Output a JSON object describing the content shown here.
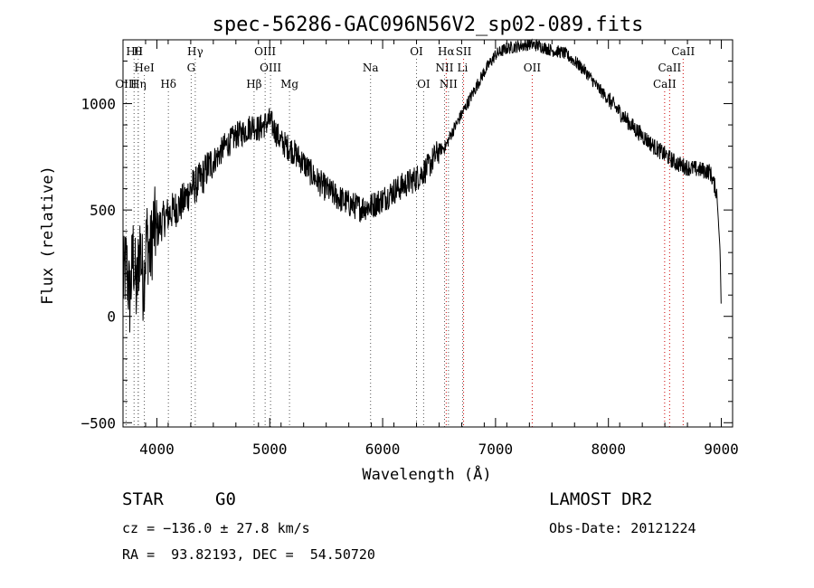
{
  "chart_data": {
    "type": "line",
    "title": "spec-56286-GAC096N56V2_sp02-089.fits",
    "xlabel": "Wavelength (Å)",
    "ylabel": "Flux (relative)",
    "xlim": [
      3700,
      9100
    ],
    "ylim": [
      -520,
      1300
    ],
    "xticks": [
      4000,
      5000,
      6000,
      7000,
      8000,
      9000
    ],
    "yticks": [
      -500,
      0,
      500,
      1000
    ],
    "grid": false,
    "series": [
      {
        "x": [
          3700,
          3730,
          3760,
          3790,
          3820,
          3850,
          3880,
          3910,
          3940,
          3970,
          4000,
          4050,
          4100,
          4150,
          4200,
          4250,
          4300,
          4350,
          4400,
          4450,
          4500,
          4550,
          4600,
          4650,
          4700,
          4750,
          4800,
          4850,
          4900,
          4950,
          5000,
          5050,
          5100,
          5150,
          5200,
          5300,
          5400,
          5500,
          5600,
          5700,
          5800,
          5900,
          6000,
          6100,
          6200,
          6300,
          6400,
          6500,
          6560,
          6600,
          6700,
          6800,
          6900,
          7000,
          7100,
          7200,
          7300,
          7400,
          7500,
          7600,
          7700,
          7800,
          7900,
          8000,
          8100,
          8200,
          8300,
          8400,
          8500,
          8600,
          8700,
          8800,
          8900,
          8960,
          8990,
          9000
        ],
        "y": [
          150,
          250,
          80,
          300,
          100,
          350,
          150,
          380,
          280,
          420,
          400,
          450,
          480,
          500,
          520,
          550,
          600,
          620,
          650,
          700,
          730,
          760,
          800,
          820,
          850,
          860,
          880,
          900,
          880,
          900,
          920,
          870,
          820,
          800,
          780,
          720,
          650,
          600,
          560,
          530,
          510,
          520,
          550,
          590,
          620,
          650,
          700,
          780,
          800,
          850,
          950,
          1050,
          1150,
          1230,
          1260,
          1270,
          1280,
          1270,
          1250,
          1240,
          1200,
          1150,
          1080,
          1020,
          960,
          900,
          850,
          800,
          760,
          720,
          700,
          690,
          680,
          580,
          300,
          0
        ]
      }
    ],
    "lines": [
      {
        "label": "Hθ",
        "x": 3798,
        "row": 0,
        "color": "#555555"
      },
      {
        "label": "H",
        "x": 3835,
        "row": 0,
        "color": "#555555"
      },
      {
        "label": "Hγ",
        "x": 4340,
        "row": 0,
        "color": "#555555"
      },
      {
        "label": "OIII",
        "x": 4959,
        "row": 0,
        "color": "#555555"
      },
      {
        "label": "OI",
        "x": 6300,
        "row": 0,
        "color": "#555555"
      },
      {
        "label": "Hα",
        "x": 6563,
        "row": 0,
        "color": "#cc0000"
      },
      {
        "label": "SII",
        "x": 6717,
        "row": 0,
        "color": "#cc0000"
      },
      {
        "label": "CaII",
        "x": 8662,
        "row": 0,
        "color": "#cc0000"
      },
      {
        "label": "HeI",
        "x": 3889,
        "row": 1,
        "color": "#555555"
      },
      {
        "label": "G",
        "x": 4304,
        "row": 1,
        "color": "#555555"
      },
      {
        "label": "OIII",
        "x": 5007,
        "row": 1,
        "color": "#555555"
      },
      {
        "label": "Na",
        "x": 5893,
        "row": 1,
        "color": "#555555"
      },
      {
        "label": "NII",
        "x": 6548,
        "row": 1,
        "color": "#555555"
      },
      {
        "label": "Li",
        "x": 6708,
        "row": 1,
        "color": "#555555"
      },
      {
        "label": "OII",
        "x": 7325,
        "row": 1,
        "color": "#cc0000"
      },
      {
        "label": "CaII",
        "x": 8542,
        "row": 1,
        "color": "#cc0000"
      },
      {
        "label": "OIII",
        "x": 3727,
        "row": 2,
        "color": "#555555"
      },
      {
        "label": "Hη",
        "x": 3835,
        "row": 2,
        "color": "#555555"
      },
      {
        "label": "Hδ",
        "x": 4102,
        "row": 2,
        "color": "#555555"
      },
      {
        "label": "Hβ",
        "x": 4861,
        "row": 2,
        "color": "#555555"
      },
      {
        "label": "Mg",
        "x": 5175,
        "row": 2,
        "color": "#555555"
      },
      {
        "label": "OI",
        "x": 6363,
        "row": 2,
        "color": "#555555"
      },
      {
        "label": "NII",
        "x": 6583,
        "row": 2,
        "color": "#555555"
      },
      {
        "label": "CaII",
        "x": 8498,
        "row": 2,
        "color": "#cc0000"
      }
    ]
  },
  "info": {
    "object_type": "STAR",
    "subclass": "G0",
    "survey": "LAMOST DR2",
    "cz": "cz = −136.0 ± 27.8 km/s",
    "obs_date": "Obs-Date: 20121224",
    "coords": "RA =  93.82193, DEC =  54.50720"
  }
}
